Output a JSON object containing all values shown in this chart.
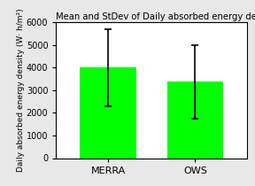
{
  "categories": [
    "MERRA",
    "OWS"
  ],
  "means": [
    4000,
    3400
  ],
  "yerr_lower": [
    1700,
    1650
  ],
  "yerr_upper": [
    1700,
    1600
  ],
  "bar_color": "#00ff00",
  "bar_width": 0.65,
  "title": "Mean and StDev of Daily absorbed energy density at",
  "ylabel": "Daily absorbed energy density (W· h/m²)",
  "ylim": [
    0,
    6000
  ],
  "yticks": [
    0,
    1000,
    2000,
    3000,
    4000,
    5000,
    6000
  ],
  "title_fontsize": 7.2,
  "ylabel_fontsize": 6.5,
  "tick_fontsize": 7,
  "xlabel_fontsize": 8,
  "error_capsize": 3,
  "error_linewidth": 1.2,
  "figure_background": "#e8e8e8",
  "axes_background": "#ffffff"
}
